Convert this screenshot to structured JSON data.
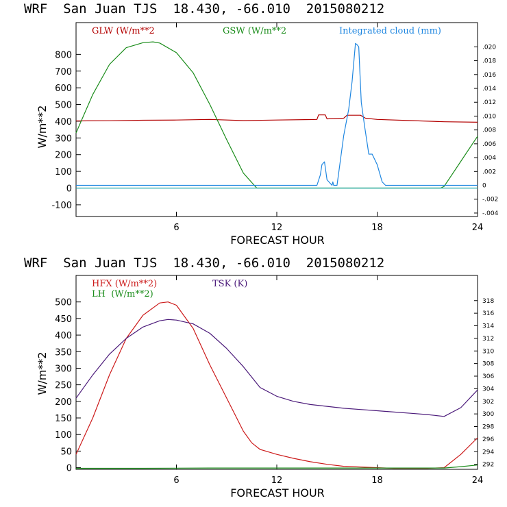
{
  "chart_data": [
    {
      "type": "line",
      "title": "WRF  San Juan TJS  18.430, -66.010  2015080212",
      "xlabel": "FORECAST HOUR",
      "ylabel": "W/m**2",
      "xlim": [
        0,
        24
      ],
      "ylim": [
        -170,
        990
      ],
      "x_ticks": [
        "6",
        "12",
        "18",
        "24"
      ],
      "y_ticks": [
        "-100",
        "0",
        "100",
        "200",
        "300",
        "400",
        "500",
        "600",
        "700",
        "800"
      ],
      "y_tick_values": [
        -100,
        0,
        100,
        200,
        300,
        400,
        500,
        600,
        700,
        800
      ],
      "y2lim": [
        -0.0045,
        0.0235
      ],
      "y2_ticks": [
        "-.004",
        "-.002",
        "0",
        ".002",
        ".004",
        ".006",
        ".008",
        ".010",
        ".012",
        ".014",
        ".016",
        ".018",
        ".020"
      ],
      "y2_tick_values": [
        -0.004,
        -0.002,
        0,
        0.002,
        0.004,
        0.006,
        0.008,
        0.01,
        0.012,
        0.014,
        0.016,
        0.018,
        0.02
      ],
      "series": [
        {
          "name": "GLW (W/m**2",
          "color": "#b30000",
          "axis": "left",
          "x": [
            0,
            2,
            4,
            6,
            8,
            10,
            12,
            14,
            14.4,
            14.5,
            14.9,
            15.0,
            16.0,
            16.2,
            17.0,
            17.3,
            18,
            20,
            22,
            24
          ],
          "y": [
            402,
            403,
            406,
            407,
            411,
            404,
            407,
            410,
            411,
            438,
            438,
            414,
            418,
            436,
            436,
            418,
            411,
            404,
            397,
            394
          ]
        },
        {
          "name": "GSW (W/m**2",
          "color": "#1a8c1a",
          "axis": "left",
          "x": [
            0,
            1,
            2,
            3,
            4,
            4.6,
            5,
            6,
            7,
            8,
            9,
            10,
            10.8,
            11,
            21.8,
            22,
            23,
            24
          ],
          "y": [
            330,
            560,
            740,
            840,
            870,
            875,
            868,
            810,
            690,
            500,
            290,
            90,
            0,
            0,
            0,
            10,
            160,
            310
          ]
        },
        {
          "name": "Integrated cloud (mm)",
          "color": "#1e86e0",
          "axis": "right",
          "x": [
            0,
            14.4,
            14.6,
            14.7,
            14.85,
            15.0,
            15.3,
            15.35,
            15.4,
            15.6,
            15.8,
            16.0,
            16.3,
            16.5,
            16.7,
            16.8,
            16.9,
            17.05,
            17.25,
            17.5,
            17.7,
            18.0,
            18.3,
            18.5,
            24
          ],
          "y": [
            0,
            0,
            0.0015,
            0.003,
            0.0034,
            0.0008,
            0.0,
            0.0005,
            0.0,
            0.0,
            0.0036,
            0.0072,
            0.011,
            0.015,
            0.0205,
            0.0203,
            0.02,
            0.012,
            0.0085,
            0.0045,
            0.0045,
            0.003,
            0.0005,
            0.0,
            0
          ]
        },
        {
          "name": "",
          "color": "#1aa8a8",
          "axis": "left",
          "x": [
            0,
            24
          ],
          "y": [
            0,
            0
          ]
        }
      ]
    },
    {
      "type": "line",
      "title": "WRF  San Juan TJS  18.430, -66.010  2015080212",
      "xlabel": "FORECAST HOUR",
      "ylabel": "W/m**2",
      "xlim": [
        0,
        24
      ],
      "ylim": [
        -5,
        580
      ],
      "x_ticks": [
        "6",
        "12",
        "18",
        "24"
      ],
      "y_ticks": [
        "0",
        "50",
        "100",
        "150",
        "200",
        "250",
        "300",
        "350",
        "400",
        "450",
        "500"
      ],
      "y_tick_values": [
        0,
        50,
        100,
        150,
        200,
        250,
        300,
        350,
        400,
        450,
        500
      ],
      "y2lim": [
        291.2,
        322
      ],
      "y2_ticks": [
        "292",
        "294",
        "296",
        "298",
        "300",
        "302",
        "304",
        "306",
        "308",
        "310",
        "312",
        "314",
        "316",
        "318"
      ],
      "y2_tick_values": [
        292,
        294,
        296,
        298,
        300,
        302,
        304,
        306,
        308,
        310,
        312,
        314,
        316,
        318
      ],
      "series": [
        {
          "name": "HFX (W/m**2)",
          "color": "#cc1a1a",
          "axis": "left",
          "x": [
            0,
            1,
            2,
            3,
            4,
            5,
            5.5,
            6,
            7,
            8,
            9,
            10,
            10.5,
            11,
            12,
            13,
            14,
            15,
            16,
            17,
            18,
            19,
            20,
            21,
            22,
            23,
            24
          ],
          "y": [
            40,
            150,
            280,
            390,
            460,
            497,
            500,
            490,
            420,
            310,
            210,
            110,
            75,
            55,
            40,
            28,
            18,
            10,
            4,
            2,
            0,
            -2,
            -2,
            -2,
            0,
            40,
            90
          ]
        },
        {
          "name": "LH  (W/m**2)",
          "color": "#1a8c1a",
          "axis": "left",
          "x": [
            0,
            4,
            8,
            12,
            16,
            20,
            22,
            23,
            24
          ],
          "y": [
            -2,
            -2,
            -1,
            -1,
            -1,
            -1,
            -1,
            3,
            8
          ]
        },
        {
          "name": "TSK (K)",
          "color": "#4b1a7a",
          "axis": "right",
          "x": [
            0,
            1,
            2,
            3,
            4,
            5,
            5.5,
            6,
            7,
            8,
            9,
            10,
            11,
            12,
            13,
            14,
            15,
            16,
            17,
            18,
            19,
            20,
            21,
            22,
            23,
            24
          ],
          "y": [
            302.5,
            306.2,
            309.5,
            312.0,
            313.8,
            314.8,
            315.0,
            314.9,
            314.3,
            312.8,
            310.4,
            307.5,
            304.2,
            302.8,
            302.0,
            301.5,
            301.2,
            300.9,
            300.7,
            300.5,
            300.3,
            300.1,
            299.9,
            299.6,
            301.0,
            303.8
          ]
        }
      ]
    }
  ]
}
